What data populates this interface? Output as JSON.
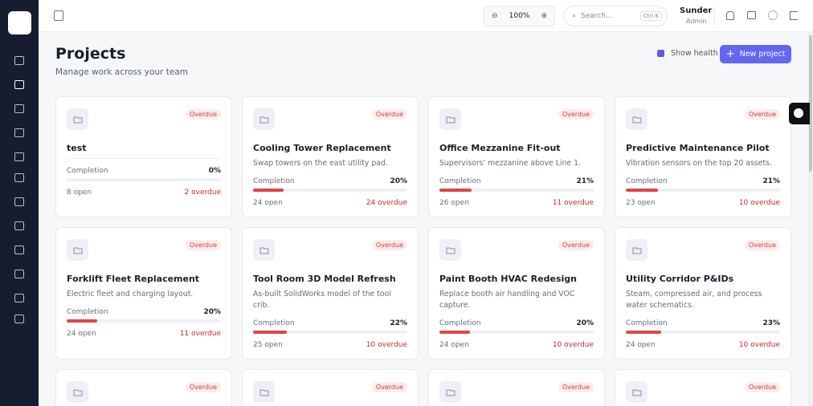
{
  "topbar": {
    "zoom": "100%",
    "search_placeholder": "Search...",
    "search_shortcut": "Ctrl K",
    "user_name": "Sunder",
    "user_role": "Admin"
  },
  "header": {
    "title": "Projects",
    "subtitle": "Manage work across your team",
    "show_health": "Show health",
    "new_project": "New project"
  },
  "projects": [
    {
      "badge": "Overdue",
      "name": "test",
      "completion_label": "Completion",
      "completion": 0,
      "completion_text": "0%",
      "open": "8 open",
      "overdue": "2 overdue"
    },
    {
      "badge": "Overdue",
      "name": "Cooling Tower Replacement",
      "description": "Swap towers on the east utility pad.",
      "completion_label": "Completion",
      "completion": 20,
      "completion_text": "20%",
      "open": "24 open",
      "overdue": "24 overdue"
    },
    {
      "badge": "Overdue",
      "name": "Office Mezzanine Fit-out",
      "description": "Supervisors' mezzanine above Line 1.",
      "completion_label": "Completion",
      "completion": 21,
      "completion_text": "21%",
      "open": "26 open",
      "overdue": "11 overdue"
    },
    {
      "badge": "Overdue",
      "name": "Predictive Maintenance Pilot",
      "description": "Vibration sensors on the top 20 assets.",
      "completion_label": "Completion",
      "completion": 21,
      "completion_text": "21%",
      "open": "23 open",
      "overdue": "10 overdue"
    },
    {
      "badge": "Overdue",
      "name": "Forklift Fleet Replacement",
      "description": "Electric fleet and charging layout.",
      "completion_label": "Completion",
      "completion": 20,
      "completion_text": "20%",
      "open": "24 open",
      "overdue": "11 overdue"
    },
    {
      "badge": "Overdue",
      "name": "Tool Room 3D Model Refresh",
      "description": "As-built SolidWorks model of the tool crib.",
      "completion_label": "Completion",
      "completion": 22,
      "completion_text": "22%",
      "open": "25 open",
      "overdue": "10 overdue"
    },
    {
      "badge": "Overdue",
      "name": "Paint Booth HVAC Redesign",
      "description": "Replace booth air handling and VOC capture.",
      "completion_label": "Completion",
      "completion": 20,
      "completion_text": "20%",
      "open": "24 open",
      "overdue": "10 overdue"
    },
    {
      "badge": "Overdue",
      "name": "Utility Corridor P&IDs",
      "description": "Steam, compressed air, and process water schematics.",
      "completion_label": "Completion",
      "completion": 23,
      "completion_text": "23%",
      "open": "24 open",
      "overdue": "10 overdue"
    },
    {
      "badge": "Overdue"
    },
    {
      "badge": "Overdue"
    },
    {
      "badge": "Overdue"
    },
    {
      "badge": "Overdue"
    }
  ]
}
